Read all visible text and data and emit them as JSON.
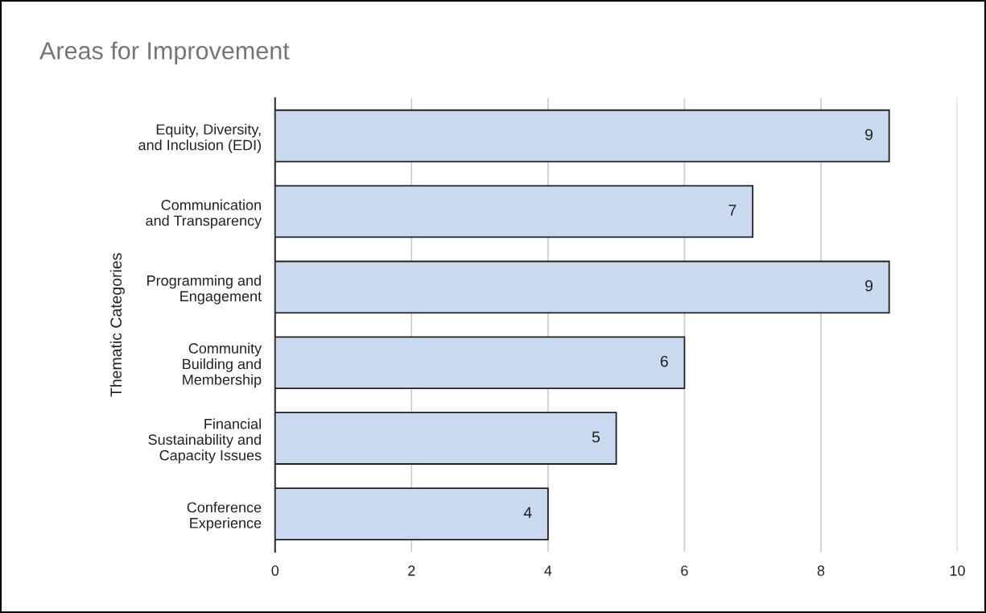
{
  "chart_data": {
    "type": "bar",
    "orientation": "horizontal",
    "title": "Areas for Improvement",
    "ylabel": "Thematic Categories",
    "categories": [
      "Equity, Diversity,\nand Inclusion (EDI)",
      "Communication\nand Transparency",
      "Programming and\nEngagement",
      "Community\nBuilding and\nMembership",
      "Financial\nSustainability and\nCapacity Issues",
      "Conference\nExperience"
    ],
    "values": [
      9,
      7,
      9,
      6,
      5,
      4
    ],
    "color": "#c9d9f0",
    "xlim": [
      0,
      10
    ],
    "xticks": [
      0,
      2,
      4,
      6,
      8,
      10
    ],
    "grid": "x",
    "data_labels": true
  }
}
